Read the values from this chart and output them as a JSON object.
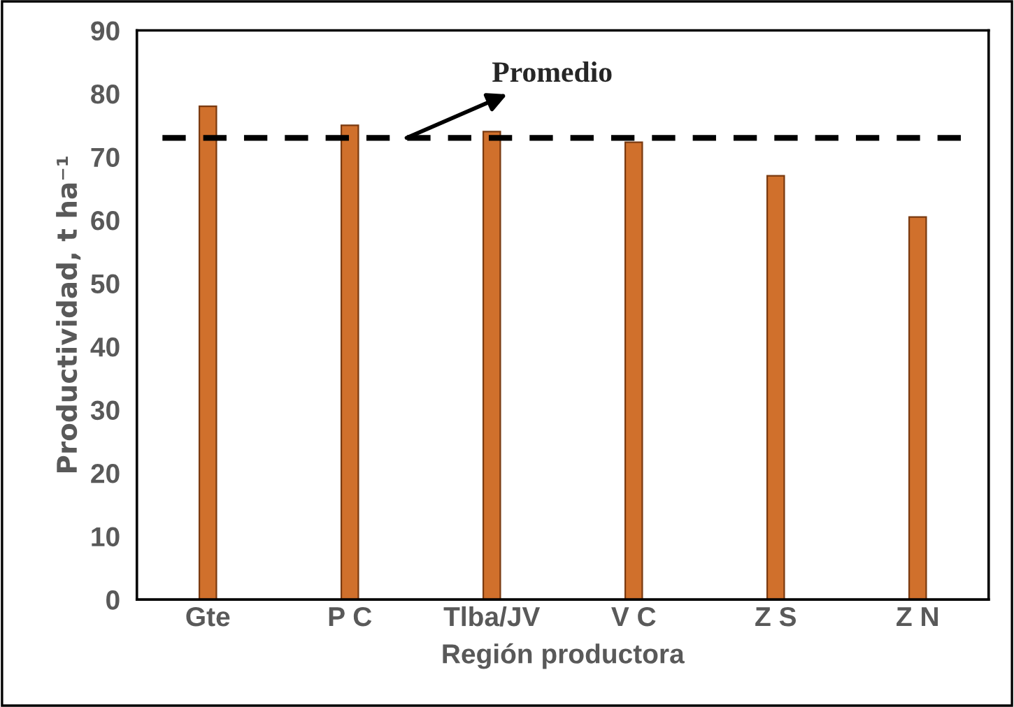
{
  "chart_data": {
    "type": "bar",
    "xlabel": "Región productora",
    "ylabel": "Productividad, t ha⁻¹",
    "categories": [
      "Gte",
      "P C",
      "Tlba/JV",
      "V C",
      "Z S",
      "Z N"
    ],
    "values": [
      78,
      75,
      74,
      72.3,
      67,
      60.5
    ],
    "color": "#d0702c",
    "ylim": [
      0,
      90
    ],
    "yticks": [
      0,
      10,
      20,
      30,
      40,
      50,
      60,
      70,
      80,
      90
    ],
    "grid": false,
    "ref_lines": [
      {
        "axis": "y",
        "value": 73,
        "label": "Promedio",
        "color": "#000000",
        "line_style": "dashed"
      }
    ]
  }
}
